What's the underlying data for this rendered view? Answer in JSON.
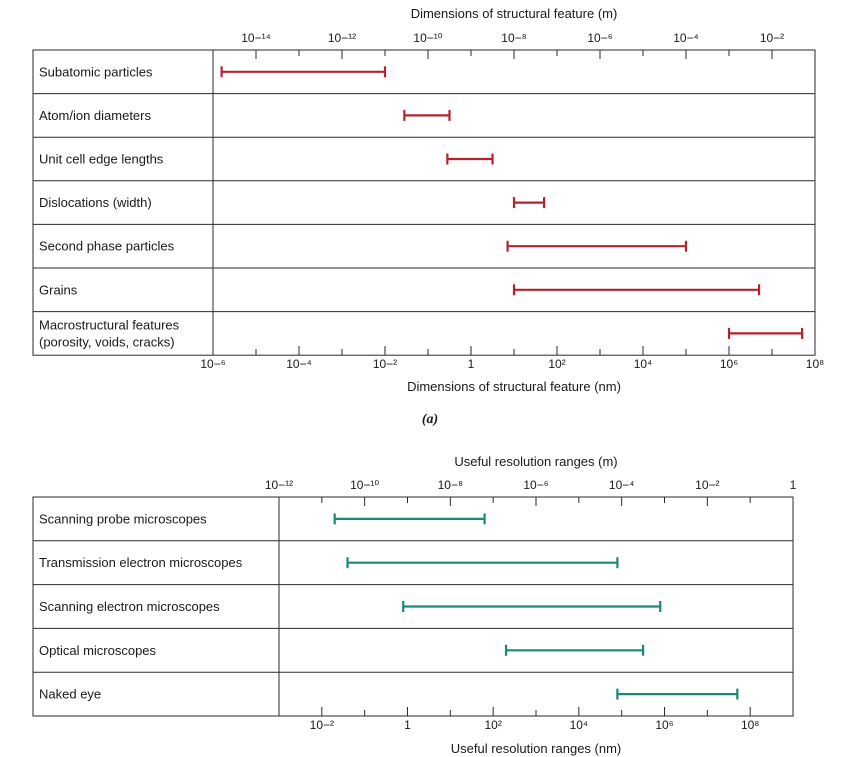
{
  "chart_data": [
    {
      "type": "range",
      "scale": "log10",
      "top_axis": {
        "label": "Dimensions of structural feature (m)",
        "labeled_exponents": [
          -14,
          -12,
          -10,
          -8,
          -6,
          -4,
          -2
        ],
        "tick_exponents": [
          -15,
          -14,
          -13,
          -12,
          -11,
          -10,
          -9,
          -8,
          -7,
          -6,
          -5,
          -4,
          -3,
          -2,
          -1
        ]
      },
      "bottom_axis": {
        "label": "Dimensions of structural feature (nm)",
        "labeled_exponents": [
          -6,
          -4,
          -2,
          0,
          2,
          4,
          6,
          8
        ],
        "tick_exponents": [
          -6,
          -5,
          -4,
          -3,
          -2,
          -1,
          0,
          1,
          2,
          3,
          4,
          5,
          6,
          7,
          8
        ]
      },
      "xlim_nm_log10": [
        -6,
        8
      ],
      "bar_color": "#b5222f",
      "rows": [
        {
          "label": "Subatomic particles",
          "range_nm_log10": [
            -5.8,
            -2.0
          ]
        },
        {
          "label": "Atom/ion diameters",
          "range_nm_log10": [
            -1.55,
            -0.5
          ]
        },
        {
          "label": "Unit cell edge lengths",
          "range_nm_log10": [
            -0.55,
            0.5
          ]
        },
        {
          "label": "Dislocations (width)",
          "range_nm_log10": [
            1.0,
            1.7
          ]
        },
        {
          "label": "Second phase particles",
          "range_nm_log10": [
            0.85,
            5.0
          ]
        },
        {
          "label": "Grains",
          "range_nm_log10": [
            1.0,
            6.7
          ]
        },
        {
          "label": "Macrostructural features (porosity, voids, cracks)",
          "label_lines": [
            "Macrostructural features",
            "(porosity, voids, cracks)"
          ],
          "range_nm_log10": [
            6.0,
            7.7
          ]
        }
      ],
      "caption": "(a)"
    },
    {
      "type": "range",
      "scale": "log10",
      "top_axis": {
        "label": "Useful resolution ranges (m)",
        "labeled_exponents": [
          -12,
          -10,
          -8,
          -6,
          -4,
          -2,
          0
        ],
        "tick_exponents": [
          -12,
          -11,
          -10,
          -9,
          -8,
          -7,
          -6,
          -5,
          -4,
          -3,
          -2,
          -1,
          0
        ]
      },
      "bottom_axis": {
        "label": "Useful resolution ranges (nm)",
        "labeled_exponents": [
          -2,
          0,
          2,
          4,
          6,
          8
        ],
        "tick_exponents": [
          -3,
          -2,
          -1,
          0,
          1,
          2,
          3,
          4,
          5,
          6,
          7,
          8,
          9
        ]
      },
      "xlim_nm_log10": [
        -3,
        9
      ],
      "bar_color": "#1a8a73",
      "rows": [
        {
          "label": "Scanning probe microscopes",
          "range_nm_log10": [
            -1.7,
            1.8
          ]
        },
        {
          "label": "Transmission electron microscopes",
          "range_nm_log10": [
            -1.4,
            4.9
          ]
        },
        {
          "label": "Scanning electron microscopes",
          "range_nm_log10": [
            -0.1,
            5.9
          ]
        },
        {
          "label": "Optical microscopes",
          "range_nm_log10": [
            2.3,
            5.5
          ]
        },
        {
          "label": "Naked eye",
          "range_nm_log10": [
            4.9,
            7.7
          ]
        }
      ]
    }
  ]
}
